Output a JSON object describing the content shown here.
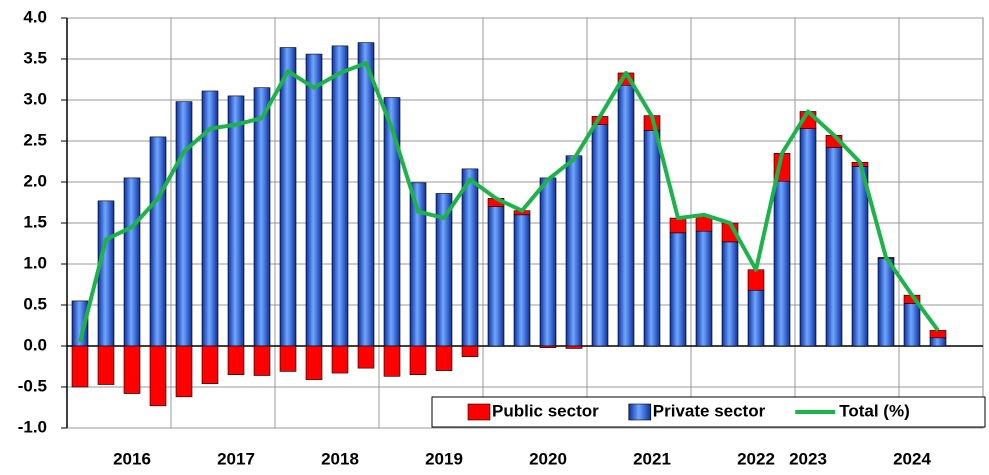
{
  "chart_data": {
    "type": "bar",
    "categories": [
      null,
      null,
      "2016",
      null,
      null,
      null,
      "2017",
      null,
      null,
      null,
      "2018",
      null,
      null,
      null,
      "2019",
      null,
      null,
      null,
      "2020",
      null,
      null,
      null,
      "2021",
      null,
      null,
      null,
      "2022",
      null,
      "2023",
      null,
      null,
      null,
      "2024",
      null
    ],
    "series": [
      {
        "name": "Public sector",
        "color": "#ff0000",
        "values": [
          -0.5,
          -0.47,
          -0.58,
          -0.73,
          -0.62,
          -0.46,
          -0.35,
          -0.36,
          -0.31,
          -0.41,
          -0.33,
          -0.27,
          -0.37,
          -0.35,
          -0.3,
          -0.13,
          0.1,
          0.05,
          -0.02,
          -0.03,
          0.1,
          0.15,
          0.18,
          0.18,
          0.18,
          0.23,
          0.25,
          0.34,
          0.21,
          0.15,
          0.05,
          0.01,
          0.1,
          0.09
        ]
      },
      {
        "name": "Private sector",
        "color": "#1f5fd6",
        "values": [
          0.55,
          1.77,
          2.05,
          2.55,
          2.98,
          3.11,
          3.05,
          3.15,
          3.64,
          3.56,
          3.66,
          3.7,
          3.03,
          1.99,
          1.86,
          2.16,
          1.7,
          1.6,
          2.05,
          2.32,
          2.7,
          3.18,
          2.63,
          1.38,
          1.4,
          1.27,
          0.68,
          2.01,
          2.65,
          2.42,
          2.19,
          1.07,
          0.52,
          0.1
        ]
      },
      {
        "name": "Total (%)",
        "type": "line",
        "color": "#1db34a",
        "values": [
          0.05,
          1.3,
          1.45,
          1.8,
          2.37,
          2.65,
          2.7,
          2.78,
          3.35,
          3.15,
          3.33,
          3.45,
          2.65,
          1.64,
          1.56,
          2.03,
          1.8,
          1.65,
          2.03,
          2.28,
          2.8,
          3.33,
          2.8,
          1.56,
          1.6,
          1.5,
          0.93,
          2.35,
          2.86,
          2.57,
          2.24,
          1.08,
          0.62,
          0.19
        ]
      }
    ],
    "ylim": [
      -1,
      4
    ],
    "yticks": [
      {
        "value": -1,
        "label": "-1.0"
      },
      {
        "value": -0.5,
        "label": "-0.5"
      },
      {
        "value": 0,
        "label": "0.0"
      },
      {
        "value": 0.5,
        "label": "0.5"
      },
      {
        "value": 1,
        "label": "1.0"
      },
      {
        "value": 1.5,
        "label": "1.5"
      },
      {
        "value": 2,
        "label": "2.0"
      },
      {
        "value": 2.5,
        "label": "2.5"
      },
      {
        "value": 3,
        "label": "3.0"
      },
      {
        "value": 3.5,
        "label": "3.5"
      },
      {
        "value": 4,
        "label": "4.0"
      }
    ],
    "grid": true,
    "legend": "bottom-right"
  }
}
